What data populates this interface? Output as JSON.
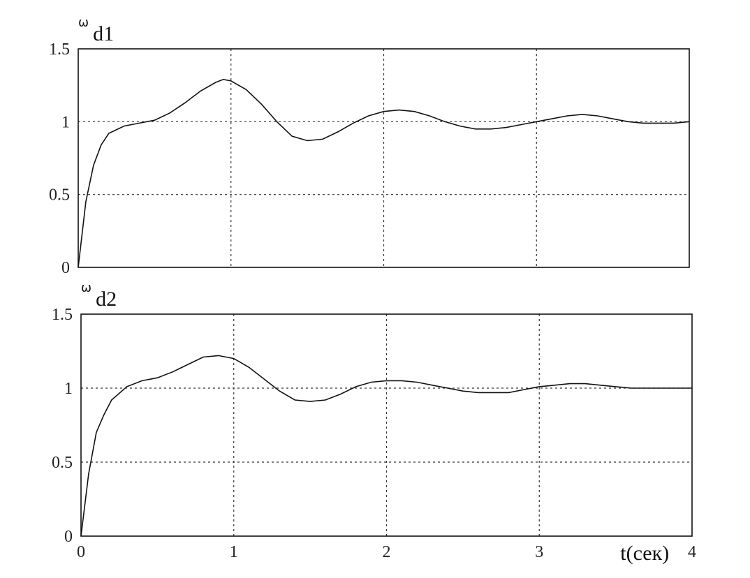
{
  "chart_data": [
    {
      "type": "line",
      "ylabel_symbol": "ω",
      "ylabel_subscript": "d1",
      "xlim": [
        0,
        4
      ],
      "ylim": [
        0,
        1.5
      ],
      "xticks": [
        0,
        1,
        2,
        3,
        4
      ],
      "xtick_labels": [
        "",
        "",
        "",
        "",
        ""
      ],
      "yticks": [
        0,
        0.5,
        1,
        1.5
      ],
      "ytick_labels": [
        "0",
        "0.5",
        "1",
        "1.5"
      ],
      "grid": true,
      "series": [
        {
          "x": [
            0,
            0.05,
            0.1,
            0.15,
            0.2,
            0.3,
            0.4,
            0.5,
            0.6,
            0.7,
            0.8,
            0.9,
            0.95,
            1.0,
            1.1,
            1.2,
            1.3,
            1.4,
            1.5,
            1.6,
            1.7,
            1.8,
            1.9,
            2.0,
            2.1,
            2.2,
            2.3,
            2.4,
            2.5,
            2.6,
            2.7,
            2.8,
            2.9,
            3.0,
            3.1,
            3.2,
            3.3,
            3.4,
            3.5,
            3.6,
            3.7,
            3.8,
            3.9,
            4.0
          ],
          "y": [
            0.0,
            0.45,
            0.7,
            0.84,
            0.92,
            0.97,
            0.99,
            1.01,
            1.06,
            1.13,
            1.21,
            1.27,
            1.29,
            1.28,
            1.22,
            1.12,
            1.0,
            0.9,
            0.87,
            0.88,
            0.93,
            0.99,
            1.04,
            1.07,
            1.08,
            1.07,
            1.04,
            1.0,
            0.97,
            0.95,
            0.95,
            0.96,
            0.98,
            1.0,
            1.02,
            1.04,
            1.05,
            1.04,
            1.02,
            1.0,
            0.99,
            0.99,
            0.99,
            1.0
          ]
        }
      ]
    },
    {
      "type": "line",
      "ylabel_symbol": "ω",
      "ylabel_subscript": "d2",
      "xlabel": "t(сек)",
      "xlim": [
        0,
        4
      ],
      "ylim": [
        0,
        1.5
      ],
      "xticks": [
        0,
        1,
        2,
        3,
        4
      ],
      "xtick_labels": [
        "0",
        "1",
        "2",
        "3",
        "4"
      ],
      "yticks": [
        0,
        0.5,
        1,
        1.5
      ],
      "ytick_labels": [
        "0",
        "0.5",
        "1",
        "1.5"
      ],
      "grid": true,
      "series": [
        {
          "x": [
            0,
            0.05,
            0.1,
            0.15,
            0.2,
            0.3,
            0.4,
            0.5,
            0.6,
            0.7,
            0.8,
            0.9,
            1.0,
            1.1,
            1.2,
            1.3,
            1.4,
            1.5,
            1.6,
            1.7,
            1.8,
            1.9,
            2.0,
            2.1,
            2.2,
            2.3,
            2.4,
            2.5,
            2.6,
            2.7,
            2.8,
            2.9,
            3.0,
            3.1,
            3.2,
            3.3,
            3.4,
            3.5,
            3.6,
            3.7,
            3.8,
            3.9,
            4.0
          ],
          "y": [
            0.0,
            0.42,
            0.7,
            0.82,
            0.92,
            1.01,
            1.05,
            1.07,
            1.11,
            1.16,
            1.21,
            1.22,
            1.2,
            1.14,
            1.06,
            0.98,
            0.92,
            0.91,
            0.92,
            0.96,
            1.01,
            1.04,
            1.05,
            1.05,
            1.04,
            1.02,
            1.0,
            0.98,
            0.97,
            0.97,
            0.97,
            0.99,
            1.01,
            1.02,
            1.03,
            1.03,
            1.02,
            1.01,
            1.0,
            1.0,
            1.0,
            1.0,
            1.0
          ]
        }
      ]
    }
  ]
}
